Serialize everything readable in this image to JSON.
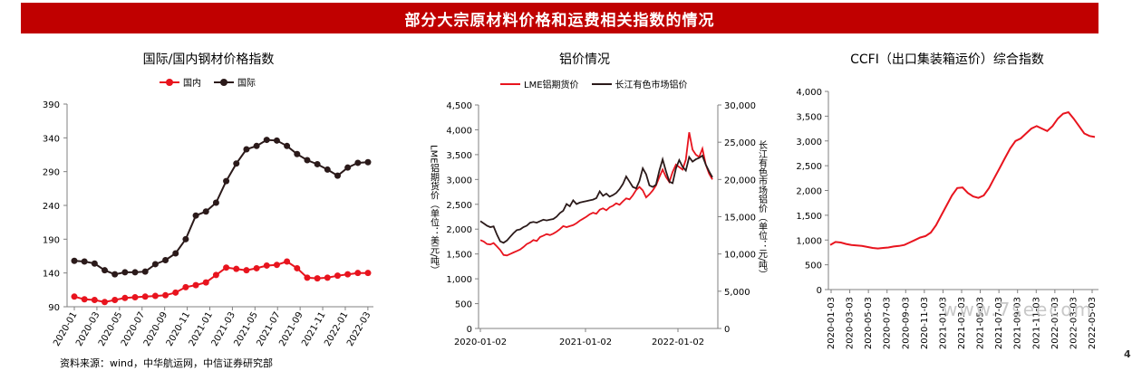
{
  "header": {
    "title": "部分大宗原材料价格和运费相关指数的情况"
  },
  "source": "资料来源：wind，中华航运网，中信证券研究部",
  "page_number": "4",
  "watermark": "www.7seecom",
  "colors": {
    "banner": "#c00000",
    "red": "#e8141e",
    "black": "#2b1a1a",
    "axis": "#808080"
  },
  "chart_data": [
    {
      "type": "line",
      "title": "国际/国内钢材价格指数",
      "ylim": [
        90,
        390
      ],
      "yticks": [
        90,
        140,
        190,
        240,
        290,
        340,
        390
      ],
      "xlabels": [
        "2020-01",
        "2020-03",
        "2020-05",
        "2020-07",
        "2020-09",
        "2020-11",
        "2021-01",
        "2021-03",
        "2021-05",
        "2021-07",
        "2021-09",
        "2021-11",
        "2022-01",
        "2022-03"
      ],
      "markers": true,
      "series": [
        {
          "name": "国内",
          "color": "#e8141e",
          "values": [
            105,
            101,
            100,
            97,
            100,
            103,
            104,
            105,
            106,
            107,
            111,
            119,
            122,
            126,
            137,
            148,
            146,
            144,
            147,
            151,
            152,
            157,
            147,
            133,
            132,
            133,
            136,
            138,
            140,
            140
          ]
        },
        {
          "name": "国际",
          "color": "#2b1a1a",
          "values": [
            158,
            157,
            154,
            144,
            138,
            141,
            141,
            142,
            153,
            159,
            169,
            190,
            225,
            231,
            244,
            276,
            302,
            323,
            328,
            337,
            336,
            328,
            316,
            307,
            301,
            293,
            284,
            296,
            303,
            304
          ]
        }
      ]
    },
    {
      "type": "line",
      "title": "铝价情况",
      "ylim_left": [
        0,
        4500
      ],
      "yticks_left": [
        0,
        500,
        1000,
        1500,
        2000,
        2500,
        3000,
        3500,
        4000,
        4500
      ],
      "ylabel_left": "LME铝期货价（单位：美元/吨）",
      "ylim_right": [
        0,
        30000
      ],
      "yticks_right": [
        0,
        5000,
        10000,
        15000,
        20000,
        25000,
        30000
      ],
      "ylabel_right": "长江有色市场铝价（单位：元/吨）",
      "xlabels": [
        "2020-01-02",
        "2021-01-02",
        "2022-01-02"
      ],
      "series": [
        {
          "name": "LME铝期货价",
          "color": "#e8141e",
          "axis": "left",
          "values": [
            1780,
            1750,
            1700,
            1690,
            1720,
            1650,
            1580,
            1480,
            1470,
            1500,
            1530,
            1560,
            1590,
            1640,
            1700,
            1730,
            1780,
            1760,
            1840,
            1870,
            1900,
            1880,
            1910,
            1950,
            2000,
            2060,
            2040,
            2060,
            2080,
            2120,
            2170,
            2210,
            2250,
            2300,
            2330,
            2310,
            2390,
            2420,
            2380,
            2440,
            2470,
            2520,
            2490,
            2560,
            2620,
            2600,
            2680,
            2790,
            2850,
            2780,
            2640,
            2700,
            2780,
            2880,
            3050,
            3200,
            3050,
            2950,
            3150,
            3300,
            3250,
            3200,
            3400,
            3950,
            3600,
            3500,
            3450,
            3620,
            3300,
            3120,
            3000
          ]
        },
        {
          "name": "长江有色市场铝价",
          "color": "#2b1a1a",
          "axis": "right",
          "values": [
            14400,
            14100,
            13800,
            13600,
            13700,
            12600,
            11700,
            11500,
            11800,
            12300,
            12800,
            13200,
            13300,
            13600,
            13800,
            14200,
            14300,
            14200,
            14400,
            14600,
            14500,
            14600,
            14700,
            15000,
            15500,
            15800,
            16700,
            16400,
            17200,
            16700,
            16900,
            17000,
            17100,
            17200,
            17300,
            17500,
            18400,
            17800,
            18100,
            17700,
            17900,
            18200,
            18700,
            19400,
            20400,
            19700,
            19000,
            18800,
            19800,
            21500,
            20700,
            19200,
            19000,
            19300,
            21200,
            22700,
            21100,
            19700,
            19500,
            21500,
            22600,
            21700,
            21200,
            23000,
            22400,
            22700,
            22900,
            23200,
            22000,
            21100,
            20300
          ]
        }
      ]
    },
    {
      "type": "line",
      "title": "CCFI（出口集装箱运价）综合指数",
      "ylim": [
        0,
        4000
      ],
      "yticks": [
        0,
        500,
        1000,
        1500,
        2000,
        2500,
        3000,
        3500,
        4000
      ],
      "xlabels": [
        "2020-01-03",
        "2020-03-03",
        "2020-05-03",
        "2020-07-03",
        "2020-09-03",
        "2020-11-03",
        "2021-01-03",
        "2021-03-03",
        "2021-05-03",
        "2021-07-03",
        "2021-09-03",
        "2021-11-03",
        "2022-01-03",
        "2022-03-03",
        "2022-05-03"
      ],
      "series": [
        {
          "name": "CCFI",
          "color": "#e8141e",
          "values": [
            900,
            960,
            950,
            920,
            900,
            890,
            880,
            860,
            840,
            830,
            840,
            850,
            870,
            880,
            900,
            950,
            1000,
            1050,
            1080,
            1150,
            1300,
            1500,
            1700,
            1900,
            2050,
            2060,
            1950,
            1880,
            1850,
            1900,
            2050,
            2250,
            2450,
            2650,
            2850,
            3000,
            3050,
            3150,
            3250,
            3300,
            3250,
            3200,
            3300,
            3450,
            3550,
            3580,
            3450,
            3300,
            3150,
            3100,
            3080
          ]
        }
      ]
    }
  ]
}
